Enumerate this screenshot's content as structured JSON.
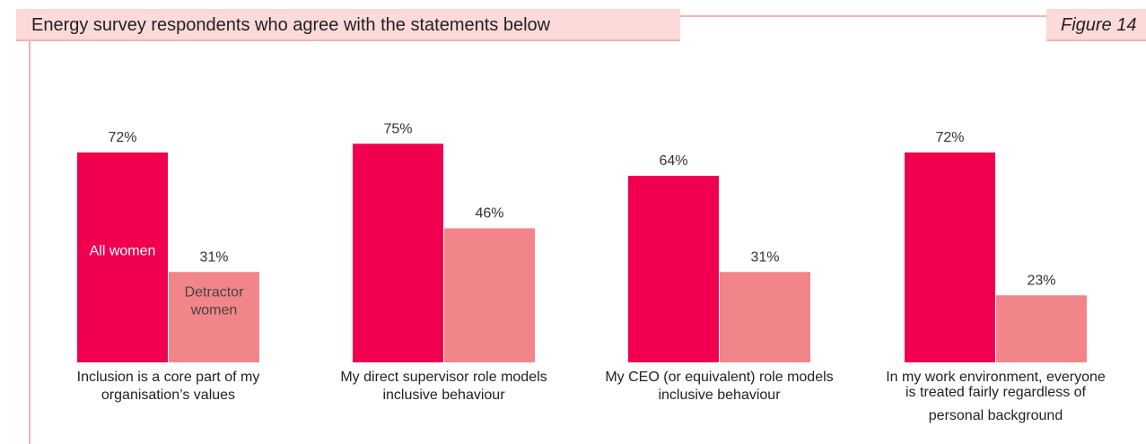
{
  "header": {
    "title": "Energy survey respondents who agree with the statements below",
    "figure_label": "Figure 14"
  },
  "colors": {
    "all_women": "#f0004f",
    "detractor_women": "#f28589",
    "band": "#fcdada",
    "rule": "#f0b4b4"
  },
  "chart_data": {
    "type": "bar",
    "title": "Energy survey respondents who agree with the statements below",
    "categories": [
      [
        "Inclusion is a core part of my",
        "organisation’s values"
      ],
      [
        "My direct supervisor role models",
        "inclusive behaviour"
      ],
      [
        "My CEO (or equivalent) role models",
        "inclusive behaviour"
      ],
      [
        "In my work environment, everyone",
        "is treated fairly regardless of",
        "personal background"
      ]
    ],
    "series": [
      {
        "name": "All women",
        "values": [
          72,
          75,
          64,
          72
        ]
      },
      {
        "name": "Detractor women",
        "values": [
          31,
          46,
          31,
          23
        ]
      }
    ],
    "value_suffix": "%",
    "legend": "inside-first-group-bars",
    "ylim": [
      0,
      100
    ],
    "grid": false
  }
}
